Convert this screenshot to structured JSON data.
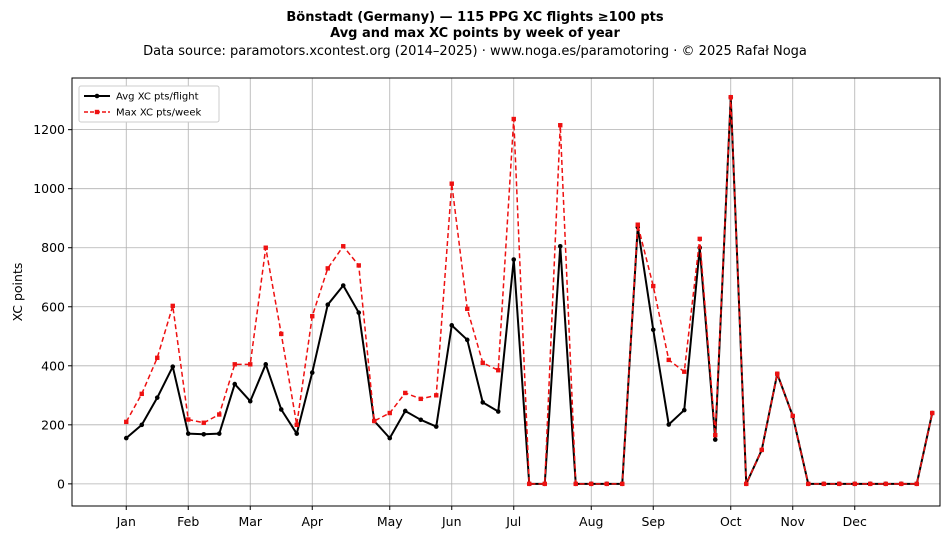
{
  "chart_data": {
    "type": "line",
    "title_line1": "Bönstadt (Germany)  —  115 PPG XC flights ≥100 pts",
    "title_line2": "Avg and max XC points by week of year",
    "subtitle": "Data source: paramotors.xcontest.org (2014–2025)  ·  www.noga.es/paramotoring  ·  © 2025 Rafał Noga",
    "ylabel": "XC points",
    "xlabel": "",
    "xlim": [
      -2.5,
      53.5
    ],
    "ylim": [
      -75,
      1375
    ],
    "yticks": [
      0,
      200,
      400,
      600,
      800,
      1000,
      1200
    ],
    "xtick_positions": [
      1,
      5,
      9,
      13,
      18,
      22,
      26,
      31,
      35,
      40,
      44,
      48
    ],
    "xtick_labels": [
      "Jan",
      "Feb",
      "Mar",
      "Apr",
      "May",
      "Jun",
      "Jul",
      "Aug",
      "Sep",
      "Oct",
      "Nov",
      "Dec"
    ],
    "grid": true,
    "legend_position": "top-left",
    "x": [
      1,
      2,
      3,
      4,
      5,
      6,
      7,
      8,
      9,
      10,
      11,
      12,
      13,
      14,
      15,
      16,
      17,
      18,
      19,
      20,
      21,
      22,
      23,
      24,
      25,
      26,
      27,
      28,
      29,
      30,
      31,
      32,
      33,
      34,
      35,
      36,
      37,
      38,
      39,
      40,
      41,
      42,
      43,
      44,
      45,
      46,
      47,
      48,
      49,
      50,
      51,
      52,
      53
    ],
    "series": [
      {
        "name": "Avg XC pts/flight",
        "color": "#000000",
        "style": "solid",
        "marker": "circle",
        "values": [
          155,
          200,
          292,
          397,
          170,
          168,
          170,
          338,
          280,
          405,
          252,
          170,
          377,
          607,
          672,
          580,
          213,
          155,
          247,
          217,
          194,
          537,
          488,
          276,
          245,
          760,
          0,
          0,
          805,
          0,
          0,
          0,
          0,
          870,
          522,
          201,
          250,
          800,
          150,
          1310,
          0,
          115,
          373,
          230,
          0,
          0,
          0,
          0,
          0,
          0,
          0,
          0,
          240
        ]
      },
      {
        "name": "Max XC pts/week",
        "color": "#ee1111",
        "style": "dashed",
        "marker": "square",
        "values": [
          210,
          305,
          427,
          603,
          218,
          207,
          235,
          405,
          405,
          800,
          508,
          200,
          568,
          730,
          805,
          740,
          213,
          240,
          308,
          288,
          300,
          1017,
          593,
          410,
          385,
          1236,
          0,
          0,
          1215,
          0,
          0,
          0,
          0,
          878,
          670,
          420,
          380,
          830,
          165,
          1310,
          0,
          115,
          373,
          230,
          0,
          0,
          0,
          0,
          0,
          0,
          0,
          0,
          240
        ]
      }
    ]
  }
}
